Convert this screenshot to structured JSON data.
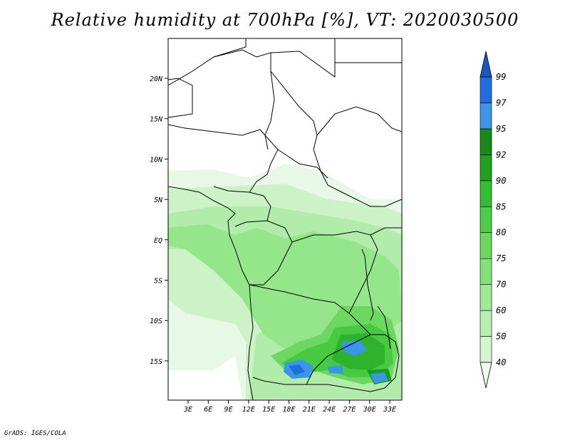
{
  "title": "Relative humidity at 700hPa [%], VT: 2020030500",
  "credit": "GrADS: IGES/COLA",
  "map": {
    "lon_labels": [
      "3E",
      "6E",
      "9E",
      "12E",
      "15E",
      "18E",
      "21E",
      "24E",
      "27E",
      "30E",
      "33E"
    ],
    "lat_labels": [
      "20N",
      "15N",
      "10N",
      "5N",
      "EQ",
      "5S",
      "10S",
      "15S"
    ]
  },
  "colorbar": {
    "levels": [
      "40",
      "50",
      "60",
      "70",
      "75",
      "80",
      "85",
      "90",
      "92",
      "95",
      "97",
      "99"
    ],
    "colors": [
      "#f0fbf0",
      "#d4f5d0",
      "#b9eeb3",
      "#9fe894",
      "#84e07a",
      "#68d85e",
      "#4cce46",
      "#32be30",
      "#1fa020",
      "#158a17",
      "#3b96ea",
      "#1f6fde",
      "#1a56c4"
    ]
  }
}
